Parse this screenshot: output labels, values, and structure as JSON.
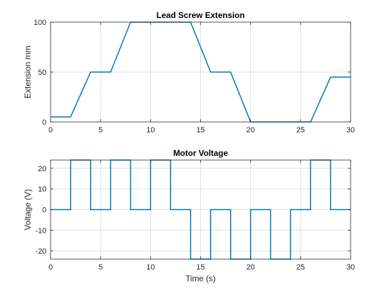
{
  "chart_data": [
    {
      "type": "line",
      "title": "Lead Screw Extension",
      "xlabel": "",
      "ylabel": "Extension mm",
      "xlim": [
        0,
        30
      ],
      "ylim": [
        0,
        100
      ],
      "xticks": [
        0,
        5,
        10,
        15,
        20,
        25,
        30
      ],
      "yticks": [
        0,
        50,
        100
      ],
      "grid": true,
      "series": [
        {
          "color": "#0072BD",
          "x": [
            0,
            2,
            4,
            6,
            8,
            10,
            12,
            14,
            16,
            18,
            20,
            22,
            24,
            26,
            28,
            30
          ],
          "y": [
            5,
            5,
            50,
            50,
            100,
            100,
            100,
            100,
            50,
            50,
            0,
            0,
            0,
            0,
            45,
            45
          ]
        }
      ]
    },
    {
      "type": "line",
      "title": "Motor Voltage",
      "xlabel": "Time (s)",
      "ylabel": "Voltage (V)",
      "xlim": [
        0,
        30
      ],
      "ylim": [
        -24,
        24
      ],
      "xticks": [
        0,
        5,
        10,
        15,
        20,
        25,
        30
      ],
      "yticks": [
        -20,
        -10,
        0,
        10,
        20
      ],
      "grid": true,
      "series": [
        {
          "color": "#0072BD",
          "x": [
            0,
            2,
            2,
            4,
            4,
            6,
            6,
            8,
            8,
            10,
            10,
            12,
            12,
            14,
            14,
            16,
            16,
            18,
            18,
            20,
            20,
            22,
            22,
            24,
            24,
            26,
            26,
            28,
            28,
            30
          ],
          "y": [
            0,
            0,
            24,
            24,
            0,
            0,
            24,
            24,
            0,
            0,
            24,
            24,
            0,
            0,
            -24,
            -24,
            0,
            0,
            -24,
            -24,
            0,
            0,
            -24,
            -24,
            0,
            0,
            24,
            24,
            0,
            0
          ]
        }
      ]
    }
  ]
}
